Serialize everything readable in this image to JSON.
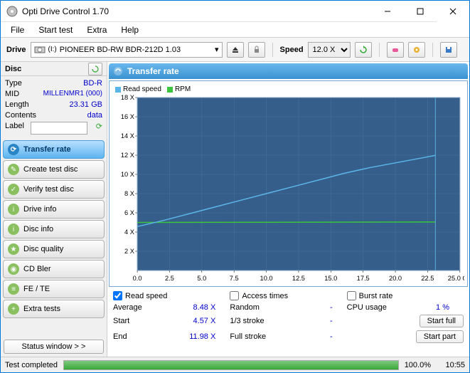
{
  "window": {
    "title": "Opti Drive Control 1.70"
  },
  "menu": {
    "file": "File",
    "start": "Start test",
    "extra": "Extra",
    "help": "Help"
  },
  "toolbar": {
    "drive_label": "Drive",
    "drive_letter": "(I:)",
    "drive_name": "PIONEER BD-RW   BDR-212D 1.03",
    "speed_label": "Speed",
    "speed_value": "12.0 X"
  },
  "disc": {
    "header": "Disc",
    "type_label": "Type",
    "type_val": "BD-R",
    "mid_label": "MID",
    "mid_val": "MILLENMR1 (000)",
    "length_label": "Length",
    "length_val": "23.31 GB",
    "contents_label": "Contents",
    "contents_val": "data",
    "label_label": "Label",
    "label_val": ""
  },
  "nav": {
    "transfer": "Transfer rate",
    "create": "Create test disc",
    "verify": "Verify test disc",
    "driveinfo": "Drive info",
    "discinfo": "Disc info",
    "discquality": "Disc quality",
    "cdbler": "CD Bler",
    "fete": "FE / TE",
    "extra": "Extra tests",
    "statuswin": "Status window > >"
  },
  "panel": {
    "title": "Transfer rate"
  },
  "chart": {
    "legend_read": "Read speed",
    "legend_rpm": "RPM",
    "read_color": "#5bb5e8",
    "rpm_color": "#3cc43c",
    "bg_color": "#355e8a",
    "grid_color": "#4a729c",
    "axis_color": "#000000",
    "text_color": "#000000",
    "xlim": [
      0.0,
      25.0
    ],
    "ylim": [
      0,
      18
    ],
    "x_label_suffix": "GB",
    "x_ticks": [
      "0.0",
      "2.5",
      "5.0",
      "7.5",
      "10.0",
      "12.5",
      "15.0",
      "17.5",
      "20.0",
      "22.5",
      "25.0"
    ],
    "y_ticks": [
      "2 X",
      "4 X",
      "6 X",
      "8 X",
      "10 X",
      "12 X",
      "14 X",
      "16 X",
      "18 X"
    ],
    "read_curve": [
      [
        0.0,
        4.57
      ],
      [
        2.0,
        5.2
      ],
      [
        4.0,
        5.9
      ],
      [
        6.0,
        6.6
      ],
      [
        8.0,
        7.3
      ],
      [
        10.0,
        8.0
      ],
      [
        12.0,
        8.7
      ],
      [
        14.0,
        9.4
      ],
      [
        16.0,
        10.1
      ],
      [
        18.0,
        10.7
      ],
      [
        20.0,
        11.2
      ],
      [
        22.0,
        11.7
      ],
      [
        23.1,
        11.98
      ]
    ],
    "rpm_curve": [
      [
        0.0,
        5.0
      ],
      [
        23.1,
        5.05
      ]
    ],
    "marker_x": 23.1
  },
  "results": {
    "read_speed_label": "Read speed",
    "access_times_label": "Access times",
    "burst_rate_label": "Burst rate",
    "average_label": "Average",
    "average_val": "8.48 X",
    "random_label": "Random",
    "random_val": "-",
    "cpu_label": "CPU usage",
    "cpu_val": "1 %",
    "start_label": "Start",
    "start_val": "4.57 X",
    "onethird_label": "1/3 stroke",
    "onethird_val": "-",
    "startfull_btn": "Start full",
    "end_label": "End",
    "end_val": "11.98 X",
    "full_label": "Full stroke",
    "full_val": "-",
    "startpart_btn": "Start part"
  },
  "status": {
    "text": "Test completed",
    "percent": "100.0%",
    "time": "10:55",
    "progress_pct": 100
  }
}
